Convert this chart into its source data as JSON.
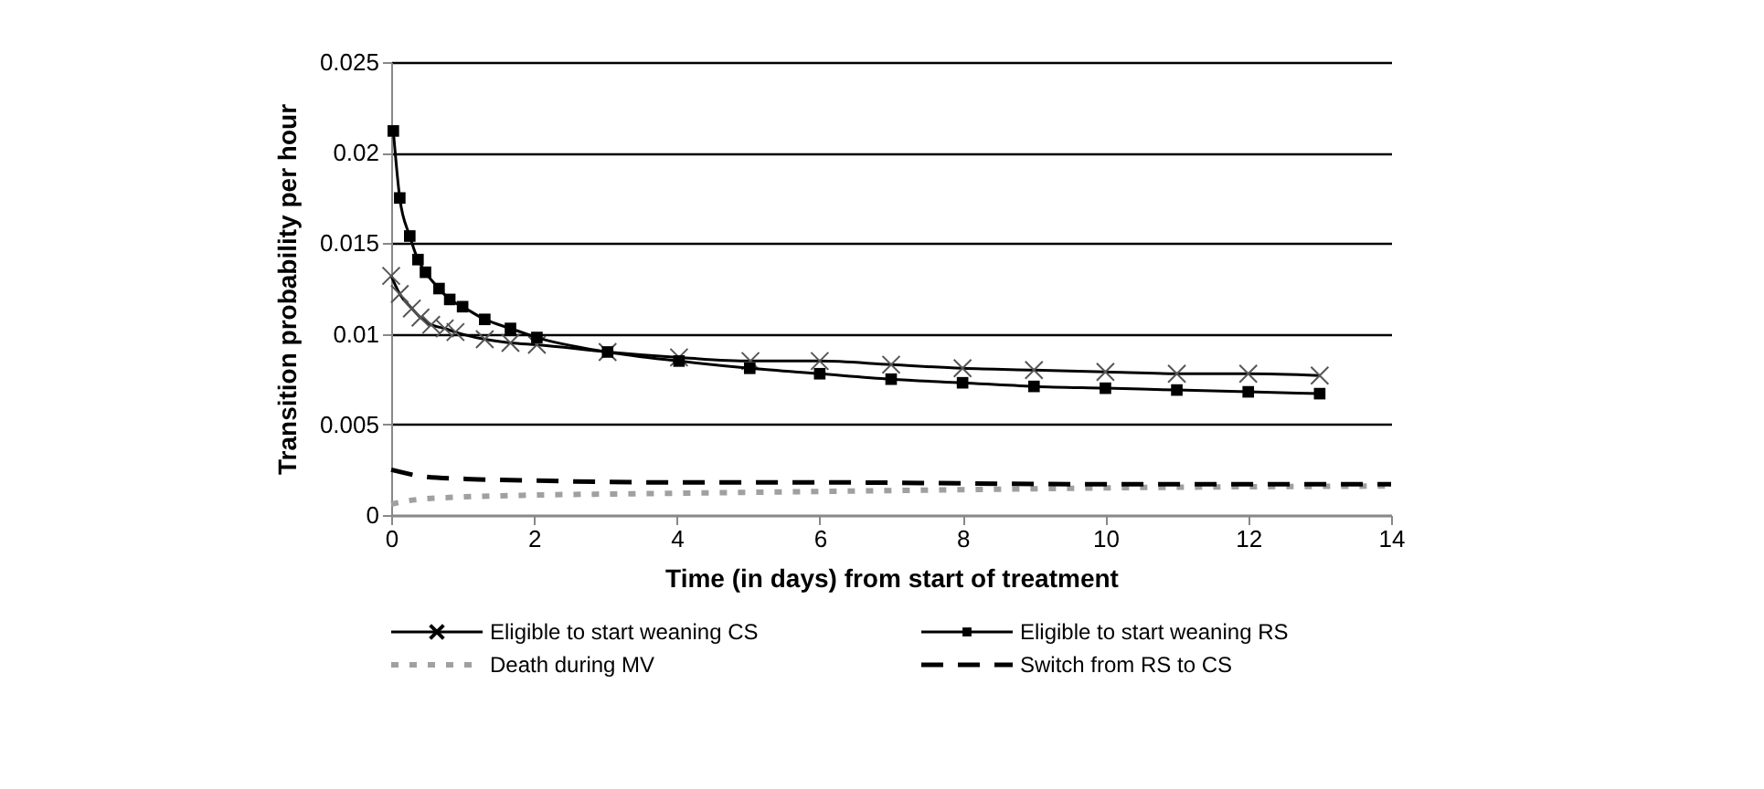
{
  "chart_data": {
    "type": "line",
    "xlabel": "Time (in days) from start of treatment",
    "ylabel": "Transition probability per hour",
    "xlim": [
      0,
      14
    ],
    "ylim": [
      0,
      0.025
    ],
    "xticks": [
      0,
      2,
      4,
      6,
      8,
      10,
      12,
      14
    ],
    "yticks": [
      0,
      0.005,
      0.01,
      0.015,
      0.02,
      0.025
    ],
    "grid": "y",
    "legend": "bottom",
    "series": [
      {
        "name": "Eligible to start weaning CS",
        "color": "#000000",
        "marker": "cross",
        "line_style": "solid",
        "x": [
          0,
          0.12,
          0.29,
          0.41,
          0.56,
          0.75,
          0.9,
          1.31,
          1.67,
          2.04,
          3.03,
          4.03,
          5.03,
          6,
          7,
          8,
          9,
          10,
          11,
          12,
          13
        ],
        "values": [
          0.0132,
          0.0122,
          0.0114,
          0.0109,
          0.0105,
          0.0103,
          0.0101,
          0.0097,
          0.0095,
          0.0094,
          0.009,
          0.0087,
          0.0085,
          0.0085,
          0.0083,
          0.0081,
          0.008,
          0.0079,
          0.0078,
          0.0078,
          0.0077
        ]
      },
      {
        "name": "Eligible to start weaning RS",
        "color": "#000000",
        "marker": "square",
        "line_style": "solid",
        "x": [
          0.03,
          0.12,
          0.26,
          0.375,
          0.48,
          0.67,
          0.82,
          1,
          1.31,
          1.67,
          2.04,
          3.03,
          4.03,
          5.02,
          6,
          7,
          8,
          9,
          10,
          11,
          12,
          13
        ],
        "values": [
          0.0212,
          0.0175,
          0.0154,
          0.0141,
          0.0134,
          0.0125,
          0.0119,
          0.0115,
          0.0108,
          0.0103,
          0.0098,
          0.009,
          0.0085,
          0.0081,
          0.0078,
          0.0075,
          0.0073,
          0.0071,
          0.007,
          0.0069,
          0.0068,
          0.0067
        ]
      },
      {
        "name": "Death during MV",
        "color": "#a0a0a0",
        "marker": "none",
        "line_style": "dotted",
        "x": [
          0,
          0.25,
          0.5,
          1,
          2,
          4,
          6,
          8,
          10,
          14
        ],
        "values": [
          0.0006,
          0.0008,
          0.0009,
          0.001,
          0.0011,
          0.0012,
          0.0013,
          0.0014,
          0.0015,
          0.0016
        ]
      },
      {
        "name": "Switch from RS to CS",
        "color": "#000000",
        "marker": "none",
        "line_style": "dashed",
        "x": [
          0,
          0.5,
          1,
          2,
          4,
          6,
          10,
          14
        ],
        "values": [
          0.0025,
          0.0021,
          0.002,
          0.0019,
          0.0018,
          0.0018,
          0.0017,
          0.0017
        ]
      }
    ]
  }
}
